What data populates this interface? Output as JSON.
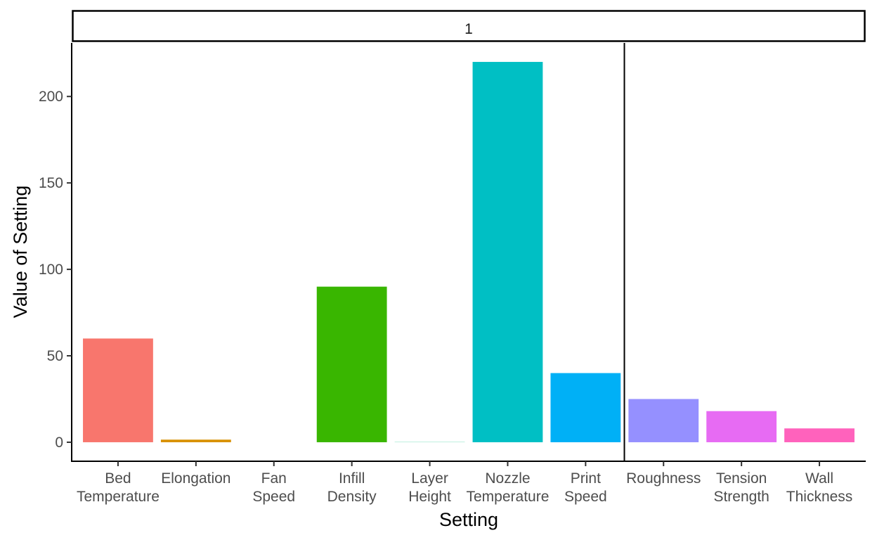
{
  "chart_data": {
    "type": "bar",
    "facet_label": "1",
    "xlabel": "Setting",
    "ylabel": "Value of Setting",
    "ylim": [
      -11,
      231
    ],
    "yticks": [
      0,
      50,
      100,
      150,
      200
    ],
    "ytick_labels": [
      "0",
      "50",
      "100",
      "150",
      "200"
    ],
    "grid": false,
    "legend": "none",
    "reference_line_between": [
      "Print Speed",
      "Roughness"
    ],
    "categories": [
      "Bed Temperature",
      "Elongation",
      "Fan Speed",
      "Infill Density",
      "Layer Height",
      "Nozzle Temperature",
      "Print Speed",
      "Roughness",
      "Tension Strength",
      "Wall Thickness"
    ],
    "category_labels": [
      [
        "Bed",
        "Temperature"
      ],
      [
        "Elongation"
      ],
      [
        "Fan",
        "Speed"
      ],
      [
        "Infill",
        "Density"
      ],
      [
        "Layer",
        "Height"
      ],
      [
        "Nozzle",
        "Temperature"
      ],
      [
        "Print",
        "Speed"
      ],
      [
        "Roughness"
      ],
      [
        "Tension",
        "Strength"
      ],
      [
        "Wall",
        "Thickness"
      ]
    ],
    "values": [
      60,
      1.5,
      0,
      90,
      0.1,
      220,
      40,
      25,
      18,
      8
    ],
    "colors": [
      "#F8766D",
      "#D89000",
      "#A3A500",
      "#39B600",
      "#00BF7D",
      "#00BFC4",
      "#00B0F6",
      "#9590FF",
      "#E76BF3",
      "#FF62BC"
    ]
  }
}
